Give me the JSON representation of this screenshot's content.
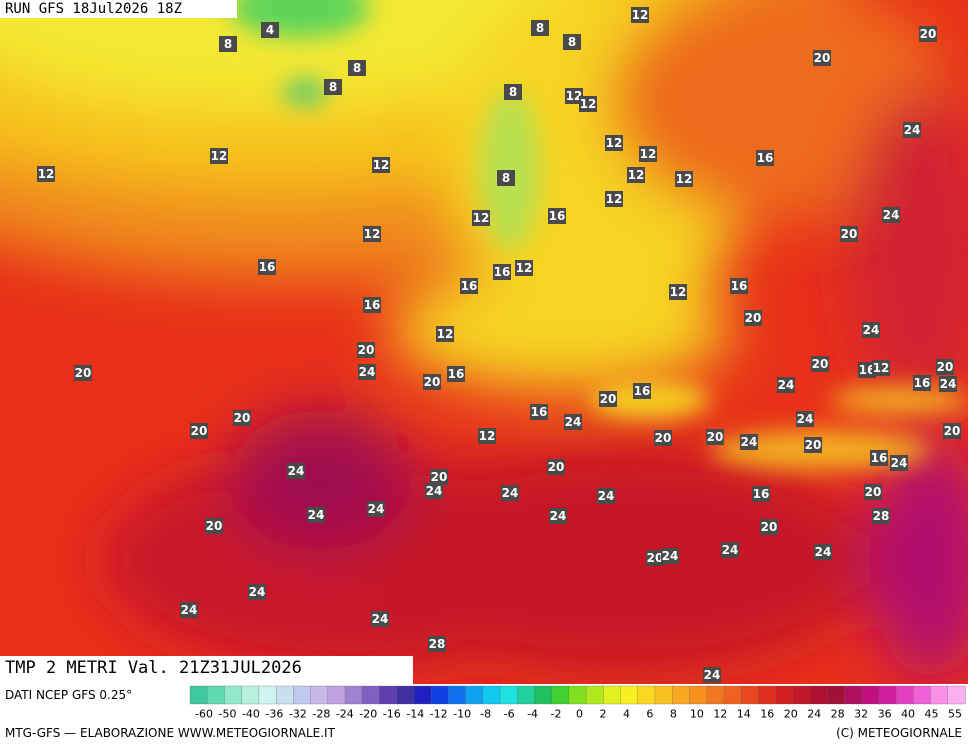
{
  "map": {
    "header": "RUN GFS 18Jul2026 18Z",
    "temperature_labels": [
      "8",
      "12",
      "4",
      "8",
      "8",
      "20",
      "8",
      "8",
      "20",
      "8",
      "12",
      "12",
      "24",
      "12",
      "12",
      "12",
      "12",
      "16",
      "12",
      "12",
      "12",
      "8",
      "12",
      "24",
      "12",
      "16",
      "12",
      "20",
      "16",
      "16",
      "12",
      "16",
      "12",
      "16",
      "16",
      "20",
      "24",
      "12",
      "20",
      "20",
      "16",
      "12",
      "20",
      "20",
      "24",
      "16",
      "20",
      "16",
      "24",
      "24",
      "16",
      "20",
      "16",
      "20",
      "24",
      "24",
      "20",
      "12",
      "20",
      "20",
      "24",
      "20",
      "20",
      "16",
      "24",
      "20",
      "24",
      "20",
      "24",
      "24",
      "20",
      "24",
      "16",
      "24",
      "24",
      "24",
      "28",
      "20",
      "20",
      "24",
      "24",
      "20",
      "24",
      "24",
      "24",
      "24",
      "28",
      "24"
    ],
    "footer": {
      "variable": "TMP 2 METRI Val. 21Z31JUL2026",
      "source": "DATI NCEP GFS 0.25°",
      "credit_left": "MTG-GFS — ELABORAZIONE WWW.METEOGIORNALE.IT",
      "credit_right": "(C) METEOGIORNALE"
    },
    "legend": {
      "labels": [
        "-60",
        "-50",
        "-40",
        "-36",
        "-32",
        "-28",
        "-24",
        "-20",
        "-16",
        "-14",
        "-12",
        "-10",
        "-8",
        "-6",
        "-4",
        "-2",
        "0",
        "2",
        "4",
        "6",
        "8",
        "10",
        "12",
        "14",
        "16",
        "20",
        "24",
        "28",
        "32",
        "36",
        "40",
        "45",
        "55"
      ]
    }
  }
}
